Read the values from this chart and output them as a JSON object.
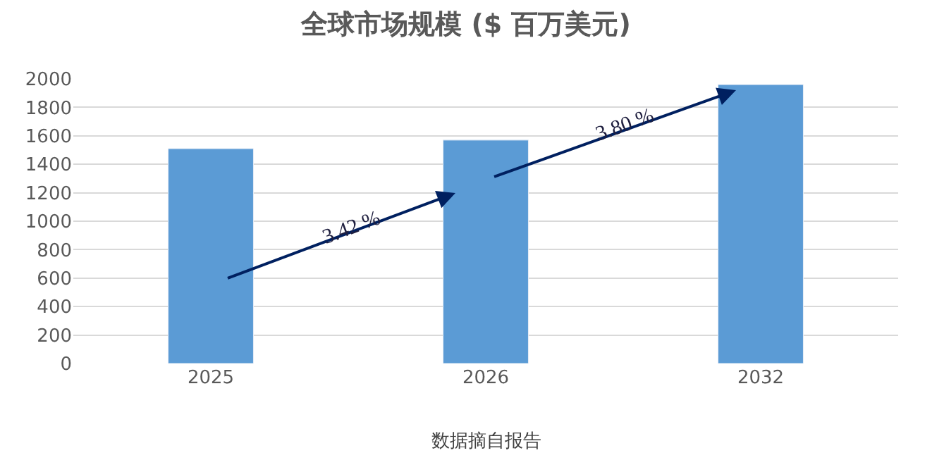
{
  "chart_data": {
    "type": "bar",
    "title": "全球市场规模 ($ 百万美元)",
    "categories": [
      "2025",
      "2026",
      "2032"
    ],
    "series": [
      {
        "color": "#5b9bd5",
        "values": [
          1510,
          1570,
          1960
        ]
      }
    ],
    "ylim": [
      0,
      2000
    ],
    "yticks": [
      0,
      200,
      400,
      600,
      800,
      1000,
      1200,
      1400,
      1600,
      1800,
      2000
    ],
    "grid": "y",
    "annotations": [
      "3.42 %",
      "3.80 %",
      "数据摘自报告"
    ]
  }
}
